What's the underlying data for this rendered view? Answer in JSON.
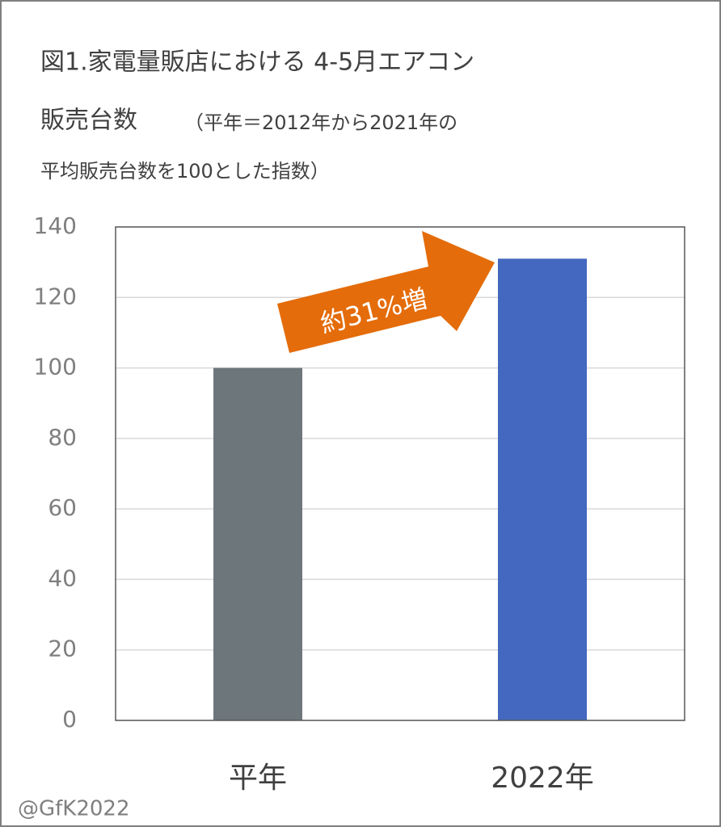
{
  "chart_data": {
    "type": "bar",
    "title": [
      "図1.家電量販店における 4-5月エアコン",
      "販売台数"
    ],
    "subtitle": [
      "（平年＝2012年から2021年の",
      "平均販売台数を100とした指数）"
    ],
    "categories": [
      "平年",
      "2022年"
    ],
    "values": [
      100,
      131
    ],
    "colors": [
      "#6d767b",
      "#4468bf"
    ],
    "ylim": [
      0,
      140
    ],
    "yticks": [
      0,
      20,
      40,
      60,
      80,
      100,
      120,
      140
    ],
    "grid": true,
    "annotation": "約31%増",
    "credit": "@GfK2022"
  }
}
